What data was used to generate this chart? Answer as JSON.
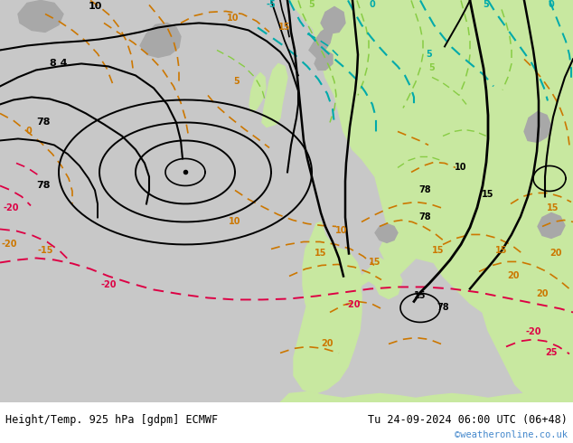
{
  "title_left": "Height/Temp. 925 hPa [gdpm] ECMWF",
  "title_right": "Tu 24-09-2024 06:00 UTC (06+48)",
  "watermark": "©weatheronline.co.uk",
  "ocean_color": "#c8c8c8",
  "land_color": "#c8e8a0",
  "gray_land_color": "#a8a8a8",
  "dark_land_color": "#b8b8b8",
  "title_color": "#000000",
  "watermark_color": "#4488cc",
  "orange": "#cc7700",
  "cyan": "#00aaaa",
  "green_yellow": "#88cc44",
  "pink": "#dd0044",
  "figsize": [
    6.34,
    4.9
  ],
  "dpi": 100
}
